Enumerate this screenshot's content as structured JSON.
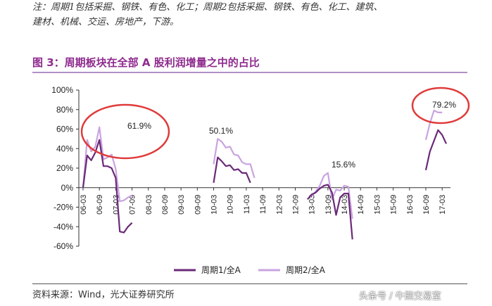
{
  "note": {
    "line1": "注：周期1包括采掘、钢铁、有色、化工；周期2包括采掘、钢铁、有色、化工、建筑、",
    "line2": "建材、机械、交运、房地产，下游。"
  },
  "figure_title": "图 3：周期板块在全部 A 股利润增量之中的占比",
  "source": "资料来源：Wind，光大证券研究所",
  "watermark": "头条号 / 牛熊交易室",
  "colors": {
    "series1": "#6b2a78",
    "series2": "#c9a4e0",
    "circle": "#e03a3a",
    "title": "#8e2a8e"
  },
  "chart_data": {
    "type": "line",
    "y_tick_labels": [
      "100%",
      "80%",
      "60%",
      "40%",
      "20%",
      "0%",
      "-20%",
      "-40%",
      "-60%"
    ],
    "ylim": [
      -60,
      100
    ],
    "x_tick_labels": [
      "06-03",
      "06-09",
      "07-03",
      "07-09",
      "08-03",
      "08-09",
      "09-03",
      "09-09",
      "10-03",
      "10-09",
      "11-03",
      "11-09",
      "12-03",
      "12-09",
      "13-03",
      "13-09",
      "14-03",
      "14-09",
      "15-03",
      "15-09",
      "16-03",
      "16-09",
      "17-03"
    ],
    "annotations": [
      {
        "label": "61.9%",
        "at_index": 5
      },
      {
        "label": "50.1%",
        "at_index": 16
      },
      {
        "label": "15.6%",
        "at_index": 58
      },
      {
        "label": "79.2%",
        "at_index": 85
      }
    ],
    "series": [
      {
        "name": "周期1/全A",
        "values": [
          0,
          33,
          28,
          36,
          49,
          22,
          22,
          20,
          10,
          -45,
          -46,
          -40,
          -36,
          null,
          null,
          null,
          null,
          null,
          null,
          null,
          null,
          null,
          null,
          null,
          null,
          null,
          null,
          null,
          null,
          null,
          null,
          null,
          5,
          31,
          27,
          22,
          23,
          18,
          19,
          15,
          15,
          5,
          null,
          null,
          null,
          null,
          null,
          null,
          null,
          null,
          null,
          null,
          null,
          null,
          null,
          -12,
          -7,
          -5,
          -1,
          2,
          3,
          -5,
          -28,
          -10,
          -6,
          -6,
          -53,
          null,
          null,
          null,
          null,
          null,
          null,
          null,
          null,
          null,
          null,
          null,
          null,
          null,
          null,
          null,
          null,
          null,
          18,
          37,
          48,
          59,
          54,
          45
        ]
      },
      {
        "name": "周期2/全A",
        "values": [
          0,
          49,
          37,
          42,
          62,
          29,
          31,
          34,
          19,
          -14,
          -13,
          -10,
          -8,
          null,
          null,
          null,
          null,
          null,
          null,
          null,
          null,
          null,
          null,
          null,
          null,
          null,
          null,
          null,
          null,
          null,
          null,
          null,
          24,
          50,
          47,
          41,
          42,
          34,
          33,
          26,
          24,
          24,
          10,
          null,
          null,
          null,
          null,
          null,
          null,
          null,
          null,
          null,
          null,
          null,
          null,
          null,
          -9,
          -4,
          2,
          12,
          15,
          -12,
          -2,
          -3,
          2,
          1,
          -32,
          null,
          null,
          null,
          null,
          null,
          null,
          null,
          null,
          null,
          null,
          null,
          null,
          null,
          null,
          null,
          null,
          null,
          49,
          66,
          79,
          77,
          77
        ]
      }
    ],
    "legend_position": "bottom",
    "grid": false
  }
}
